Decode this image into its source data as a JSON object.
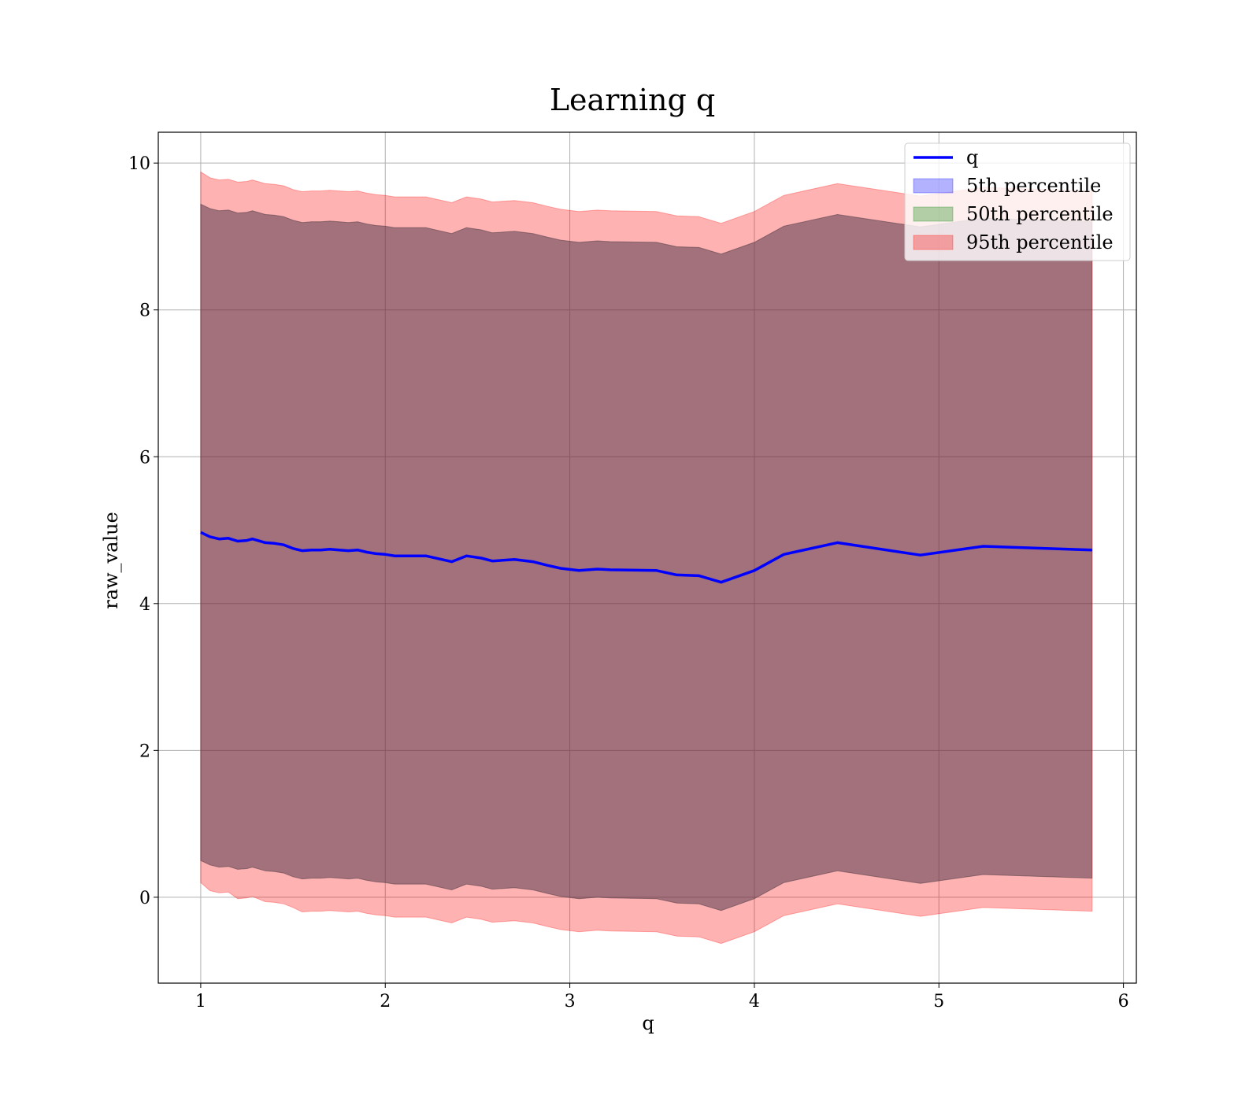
{
  "chart_data": {
    "type": "area",
    "title": "Learning q",
    "xlabel": "q",
    "ylabel": "raw_value",
    "xlim": [
      0.77,
      6.07
    ],
    "ylim": [
      -1.17,
      10.42
    ],
    "xticks": [
      1,
      2,
      3,
      4,
      5,
      6
    ],
    "yticks": [
      0,
      2,
      4,
      6,
      8,
      10
    ],
    "grid": true,
    "legend_position": "top-right",
    "x": [
      1.0,
      1.05,
      1.1,
      1.15,
      1.2,
      1.25,
      1.28,
      1.35,
      1.4,
      1.45,
      1.5,
      1.55,
      1.6,
      1.65,
      1.7,
      1.75,
      1.8,
      1.85,
      1.9,
      1.95,
      2.0,
      2.05,
      2.22,
      2.36,
      2.44,
      2.52,
      2.58,
      2.7,
      2.8,
      2.88,
      2.95,
      3.05,
      3.15,
      3.22,
      3.47,
      3.58,
      3.7,
      3.82,
      4.0,
      4.16,
      4.45,
      4.9,
      5.24,
      5.83
    ],
    "series": [
      {
        "name": "q",
        "kind": "line",
        "color": "#0000ff",
        "values": [
          4.97,
          4.91,
          4.88,
          4.89,
          4.85,
          4.86,
          4.88,
          4.83,
          4.82,
          4.8,
          4.75,
          4.72,
          4.73,
          4.73,
          4.74,
          4.73,
          4.72,
          4.73,
          4.7,
          4.68,
          4.67,
          4.65,
          4.65,
          4.57,
          4.65,
          4.62,
          4.58,
          4.6,
          4.57,
          4.52,
          4.48,
          4.45,
          4.47,
          4.46,
          4.45,
          4.39,
          4.38,
          4.29,
          4.45,
          4.67,
          4.83,
          4.66,
          4.78,
          4.73
        ]
      },
      {
        "name": "5th percentile",
        "kind": "band",
        "color": "#0000ff",
        "opacity": 0.3,
        "lower": [
          0.5,
          0.44,
          0.41,
          0.42,
          0.38,
          0.39,
          0.41,
          0.36,
          0.35,
          0.33,
          0.28,
          0.25,
          0.26,
          0.26,
          0.27,
          0.26,
          0.25,
          0.26,
          0.23,
          0.21,
          0.2,
          0.18,
          0.18,
          0.1,
          0.18,
          0.15,
          0.11,
          0.13,
          0.1,
          0.05,
          0.01,
          -0.02,
          0.0,
          -0.01,
          -0.02,
          -0.08,
          -0.09,
          -0.18,
          -0.02,
          0.2,
          0.36,
          0.19,
          0.31,
          0.26
        ],
        "upper": [
          9.44,
          9.38,
          9.35,
          9.36,
          9.32,
          9.33,
          9.35,
          9.3,
          9.29,
          9.27,
          9.22,
          9.19,
          9.2,
          9.2,
          9.21,
          9.2,
          9.19,
          9.2,
          9.17,
          9.15,
          9.14,
          9.12,
          9.12,
          9.04,
          9.12,
          9.09,
          9.05,
          9.07,
          9.04,
          8.99,
          8.95,
          8.92,
          8.94,
          8.93,
          8.92,
          8.86,
          8.85,
          8.76,
          8.92,
          9.14,
          9.3,
          9.13,
          9.25,
          9.2
        ]
      },
      {
        "name": "50th percentile",
        "kind": "band",
        "color": "#008000",
        "opacity": 0.3,
        "lower": [
          0.5,
          0.44,
          0.41,
          0.42,
          0.38,
          0.39,
          0.41,
          0.36,
          0.35,
          0.33,
          0.28,
          0.25,
          0.26,
          0.26,
          0.27,
          0.26,
          0.25,
          0.26,
          0.23,
          0.21,
          0.2,
          0.18,
          0.18,
          0.1,
          0.18,
          0.15,
          0.11,
          0.13,
          0.1,
          0.05,
          0.01,
          -0.02,
          0.0,
          -0.01,
          -0.02,
          -0.08,
          -0.09,
          -0.18,
          -0.02,
          0.2,
          0.36,
          0.19,
          0.31,
          0.26
        ],
        "upper": [
          9.44,
          9.38,
          9.35,
          9.36,
          9.32,
          9.33,
          9.35,
          9.3,
          9.29,
          9.27,
          9.22,
          9.19,
          9.2,
          9.2,
          9.21,
          9.2,
          9.19,
          9.2,
          9.17,
          9.15,
          9.14,
          9.12,
          9.12,
          9.04,
          9.12,
          9.09,
          9.05,
          9.07,
          9.04,
          8.99,
          8.95,
          8.92,
          8.94,
          8.93,
          8.92,
          8.86,
          8.85,
          8.76,
          8.92,
          9.14,
          9.3,
          9.13,
          9.25,
          9.2
        ]
      },
      {
        "name": "95th percentile",
        "kind": "band",
        "color": "#ff0000",
        "opacity": 0.3,
        "lower": [
          0.2,
          0.09,
          0.06,
          0.07,
          -0.02,
          -0.01,
          0.01,
          -0.06,
          -0.07,
          -0.09,
          -0.14,
          -0.2,
          -0.19,
          -0.19,
          -0.18,
          -0.19,
          -0.2,
          -0.19,
          -0.22,
          -0.24,
          -0.25,
          -0.27,
          -0.27,
          -0.35,
          -0.27,
          -0.3,
          -0.34,
          -0.32,
          -0.35,
          -0.4,
          -0.44,
          -0.47,
          -0.45,
          -0.46,
          -0.47,
          -0.53,
          -0.54,
          -0.63,
          -0.47,
          -0.25,
          -0.09,
          -0.26,
          -0.14,
          -0.19
        ],
        "upper": [
          9.88,
          9.8,
          9.77,
          9.78,
          9.74,
          9.75,
          9.77,
          9.72,
          9.71,
          9.69,
          9.64,
          9.61,
          9.62,
          9.62,
          9.63,
          9.62,
          9.61,
          9.62,
          9.59,
          9.57,
          9.56,
          9.54,
          9.54,
          9.46,
          9.54,
          9.51,
          9.47,
          9.49,
          9.46,
          9.41,
          9.37,
          9.34,
          9.36,
          9.35,
          9.34,
          9.28,
          9.27,
          9.18,
          9.34,
          9.56,
          9.72,
          9.55,
          9.67,
          9.62
        ]
      }
    ]
  }
}
